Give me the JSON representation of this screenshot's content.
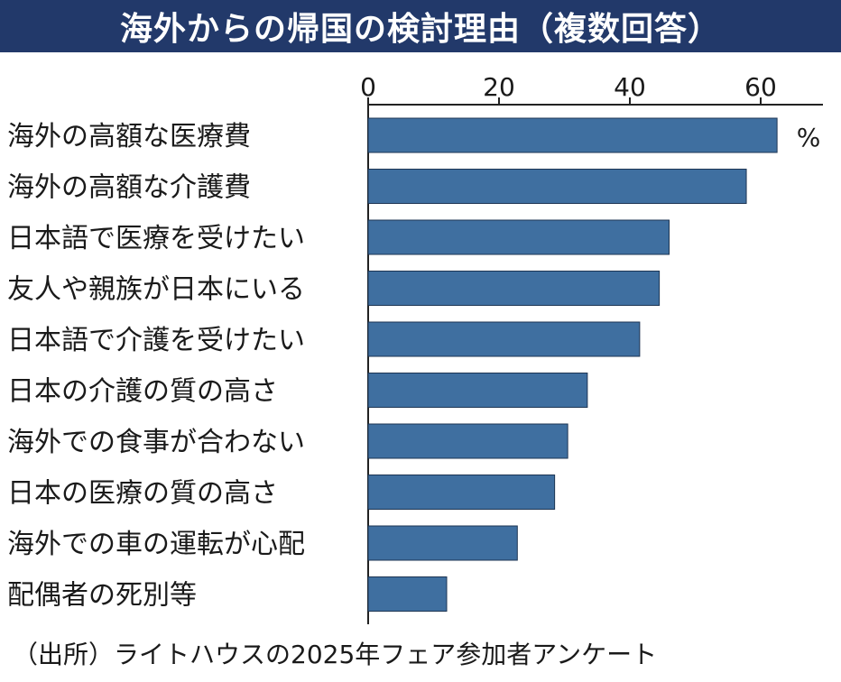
{
  "title": "海外からの帰国の検討理由（複数回答）",
  "source": "（出所）ライトハウスの2025年フェア参加者アンケート",
  "unit": "%",
  "colors": {
    "title_bg": "#22396a",
    "bar": "#3f6fa0",
    "bar_stroke": "#1d3553",
    "axis": "#222222"
  },
  "chart_data": {
    "type": "bar",
    "orientation": "horizontal",
    "title": "海外からの帰国の検討理由（複数回答）",
    "xlabel": "",
    "ylabel": "",
    "xlim": [
      0,
      69
    ],
    "ticks": [
      "0",
      "20",
      "40",
      "60"
    ],
    "tick_values": [
      0,
      20,
      40,
      60
    ],
    "grid": false,
    "categories": [
      "海外の高額な医療費",
      "海外の高額な介護費",
      "日本語で医療を受けたい",
      "友人や親族が日本にいる",
      "日本語で介護を受けたい",
      "日本の介護の質の高さ",
      "海外での食事が合わない",
      "日本の医療の質の高さ",
      "海外での車の運転が心配",
      "配偶者の死別等"
    ],
    "values": [
      62.5,
      57.8,
      46.0,
      44.5,
      41.5,
      33.5,
      30.5,
      28.5,
      22.8,
      12.0
    ]
  }
}
